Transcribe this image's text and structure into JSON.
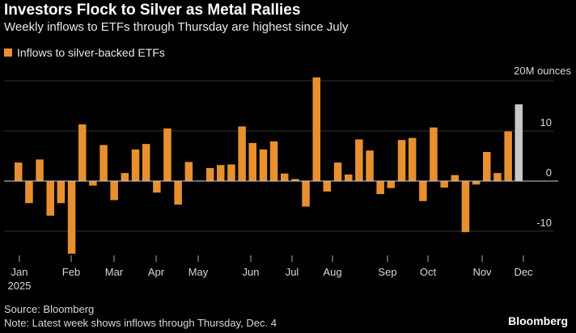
{
  "title": "Investors Flock to Silver as Metal Rallies",
  "subtitle": "Weekly inflows to ETFs through Thursday are highest since July",
  "legend_label": "Inflows to silver-backed ETFs",
  "source": "Source: Bloomberg",
  "note": "Note: Latest week shows inflows through Thursday, Dec. 4",
  "brand": "Bloomberg",
  "colors": {
    "bar": "#e8902f",
    "latest_bar": "#c8c8c8",
    "background": "#000000",
    "grid": "#333333"
  },
  "chart_data": {
    "type": "bar",
    "unit_label": "20M ounces",
    "y_ticks": [
      20,
      10,
      0,
      -10
    ],
    "y_tick_labels": [
      "",
      "10",
      "0",
      "-10"
    ],
    "ylim": [
      -15,
      22
    ],
    "month_labels": [
      "Jan",
      "Feb",
      "Mar",
      "Apr",
      "May",
      "Jun",
      "Jul",
      "Aug",
      "Sep",
      "Oct",
      "Nov",
      "Dec"
    ],
    "year_label": "2025",
    "series": [
      {
        "name": "Inflows to silver-backed ETFs",
        "values": [
          3.7,
          -4.4,
          4.3,
          -6.9,
          -4.4,
          -14.5,
          11.3,
          -0.9,
          7.2,
          -3.8,
          1.6,
          6.3,
          7.4,
          -2.3,
          10.5,
          -4.7,
          3.8,
          0.1,
          2.6,
          3.2,
          3.3,
          10.9,
          7.6,
          6.3,
          7.9,
          1.5,
          0.4,
          -5.1,
          20.7,
          -2.1,
          3.7,
          1.3,
          8.3,
          6.1,
          -2.6,
          -1.4,
          8.2,
          8.6,
          -4.0,
          10.7,
          -1.3,
          1.2,
          -10.2,
          -0.7,
          5.8,
          1.6,
          9.9,
          15.3
        ]
      }
    ],
    "latest_week_index": 47
  }
}
